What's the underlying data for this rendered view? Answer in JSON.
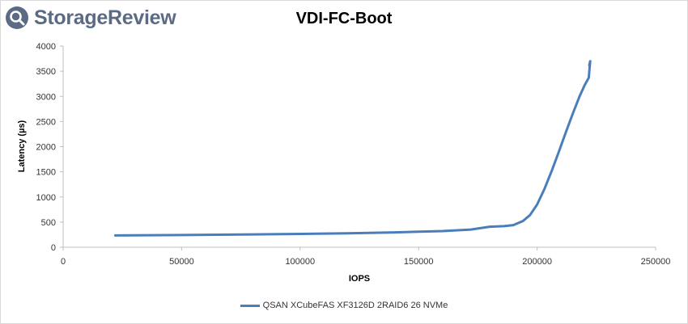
{
  "brand": {
    "name": "StorageReview",
    "color": "#5a6b83"
  },
  "chart_data": {
    "type": "line",
    "title": "VDI-FC-Boot",
    "xlabel": "IOPS",
    "ylabel": "Latency (µs)",
    "xlim": [
      0,
      250000
    ],
    "ylim": [
      0,
      4000
    ],
    "xticks": [
      "0",
      "50000",
      "100000",
      "150000",
      "200000",
      "250000"
    ],
    "yticks": [
      "0",
      "500",
      "1000",
      "1500",
      "2000",
      "2500",
      "3000",
      "3500",
      "4000"
    ],
    "grid": false,
    "legend_position": "bottom",
    "series": [
      {
        "name": "QSAN XCubeFAS XF3126D 2RAID6 26 NVMe",
        "color": "#4a7ebb",
        "points": [
          [
            22000,
            235
          ],
          [
            50000,
            242
          ],
          [
            80000,
            255
          ],
          [
            100000,
            265
          ],
          [
            120000,
            278
          ],
          [
            140000,
            295
          ],
          [
            160000,
            322
          ],
          [
            172000,
            352
          ],
          [
            180000,
            408
          ],
          [
            186000,
            420
          ],
          [
            190000,
            440
          ],
          [
            194000,
            520
          ],
          [
            197000,
            640
          ],
          [
            200000,
            850
          ],
          [
            203000,
            1150
          ],
          [
            206000,
            1500
          ],
          [
            209000,
            1880
          ],
          [
            212000,
            2270
          ],
          [
            215000,
            2650
          ],
          [
            218000,
            3010
          ],
          [
            220000,
            3220
          ],
          [
            221800,
            3370
          ],
          [
            222200,
            3600
          ],
          [
            222400,
            3700
          ],
          [
            222000,
            3620
          ]
        ]
      }
    ]
  }
}
